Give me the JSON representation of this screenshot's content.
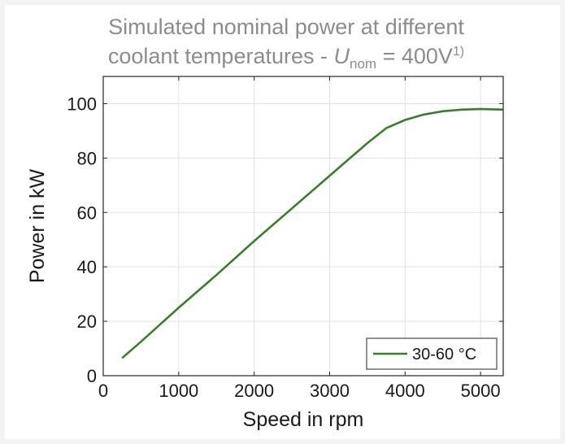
{
  "chart_data": {
    "type": "line",
    "title": {
      "line1": "Simulated nominal power at different",
      "line2_prefix": "coolant temperatures - ",
      "symbol": "U",
      "subscript": "nom",
      "line2_suffix": " = 400V",
      "superscript": "1)"
    },
    "xlabel": "Speed in rpm",
    "ylabel": "Power in kW",
    "xlim": [
      0,
      5300
    ],
    "ylim": [
      0,
      110
    ],
    "xticks": [
      0,
      1000,
      2000,
      3000,
      4000,
      5000
    ],
    "yticks": [
      0,
      20,
      40,
      60,
      80,
      100
    ],
    "xtick_labels": [
      "0",
      "1000",
      "2000",
      "3000",
      "4000",
      "5000"
    ],
    "ytick_labels": [
      "0",
      "20",
      "40",
      "60",
      "80",
      "100"
    ],
    "grid": true,
    "legend_position": "bottom-right",
    "series": [
      {
        "name": "30-60 °C",
        "color": "#3a7d2c",
        "x": [
          250,
          500,
          1000,
          1500,
          2000,
          2500,
          3000,
          3250,
          3500,
          3750,
          4000,
          4250,
          4500,
          4750,
          5000,
          5300
        ],
        "y": [
          6.5,
          12.5,
          25,
          37,
          49.5,
          61.5,
          73.5,
          79.5,
          85.5,
          91,
          94,
          96,
          97.2,
          97.8,
          98,
          97.8
        ]
      }
    ]
  }
}
